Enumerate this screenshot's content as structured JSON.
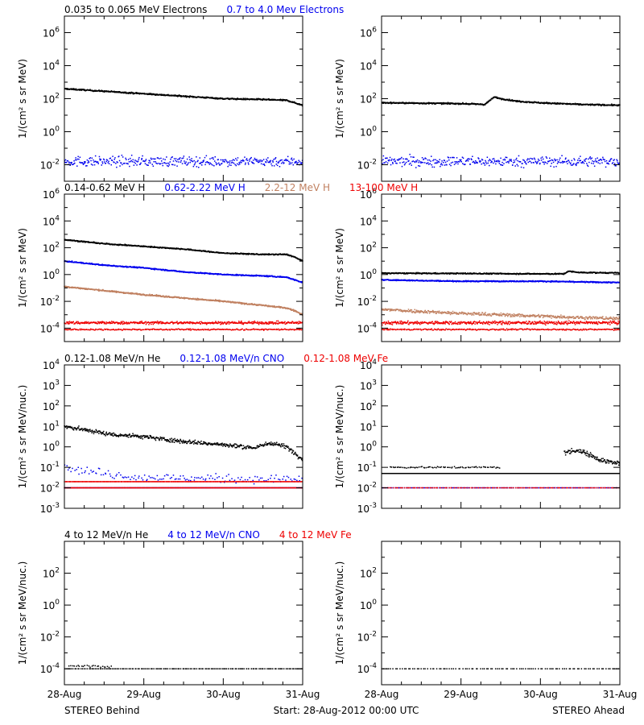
{
  "footer": {
    "left": "STEREO Behind",
    "center": "Start: 28-Aug-2012 00:00 UTC",
    "right": "STEREO Ahead"
  },
  "x_axis": {
    "unit": "days since 28-Aug-2012 00:00 UTC",
    "range": [
      0,
      3
    ],
    "ticks": [
      0,
      1,
      2,
      3
    ],
    "tick_labels": [
      "28-Aug",
      "29-Aug",
      "30-Aug",
      "31-Aug"
    ]
  },
  "colors": {
    "black": "#000000",
    "blue": "#0000ee",
    "tan": "#c08060",
    "red": "#ee0000"
  },
  "rows": [
    {
      "legend": [
        {
          "text": "0.035 to 0.065 MeV Electrons",
          "color": "#000000"
        },
        {
          "text": "0.7 to 4.0 Mev Electrons",
          "color": "#0000ee"
        }
      ]
    },
    {
      "legend": [
        {
          "text": "0.14-0.62 MeV H",
          "color": "#000000"
        },
        {
          "text": "0.62-2.22 MeV H",
          "color": "#0000ee"
        },
        {
          "text": "2.2-12 MeV H",
          "color": "#c08060"
        },
        {
          "text": "13-100 MeV H",
          "color": "#ee0000"
        }
      ]
    },
    {
      "legend": [
        {
          "text": "0.12-1.08 MeV/n He",
          "color": "#000000"
        },
        {
          "text": "0.12-1.08 MeV/n CNO",
          "color": "#0000ee"
        },
        {
          "text": "0.12-1.08 MeV Fe",
          "color": "#ee0000"
        }
      ]
    },
    {
      "legend": [
        {
          "text": "4 to 12 MeV/n He",
          "color": "#000000"
        },
        {
          "text": "4 to 12 MeV/n CNO",
          "color": "#0000ee"
        },
        {
          "text": "4 to 12 MeV Fe",
          "color": "#ee0000"
        }
      ]
    }
  ],
  "chart_data": [
    {
      "type": "scatter",
      "panel": "electrons-behind",
      "ylabel": "1/(cm² s sr MeV)",
      "yscale": "log",
      "ylim_exp": [
        -3,
        7
      ],
      "yticks": [
        {
          "exp": -2,
          "label": "10",
          "sup": "-2"
        },
        {
          "exp": 0,
          "label": "10",
          "sup": "0"
        },
        {
          "exp": 2,
          "label": "10",
          "sup": "2"
        },
        {
          "exp": 4,
          "label": "10",
          "sup": "4"
        },
        {
          "exp": 6,
          "label": "10",
          "sup": "6"
        }
      ],
      "xticks_labeled": false,
      "series": [
        {
          "color": "#000000",
          "kind": "line",
          "x": [
            0,
            0.5,
            1,
            1.5,
            2,
            2.5,
            2.8,
            3
          ],
          "log10_y": [
            2.6,
            2.45,
            2.3,
            2.15,
            2.0,
            1.95,
            1.9,
            1.6
          ],
          "noise": 0.04
        },
        {
          "color": "#0000ee",
          "kind": "scatter",
          "x": [
            0,
            3
          ],
          "log10_y": [
            -1.8,
            -1.8
          ],
          "noise": 0.3,
          "n": 400
        }
      ]
    },
    {
      "type": "scatter",
      "panel": "electrons-ahead",
      "ylabel": "1/(cm² s sr MeV)",
      "yscale": "log",
      "ylim_exp": [
        -3,
        7
      ],
      "yticks": [
        {
          "exp": -2,
          "label": "10",
          "sup": "-2"
        },
        {
          "exp": 0,
          "label": "10",
          "sup": "0"
        },
        {
          "exp": 2,
          "label": "10",
          "sup": "2"
        },
        {
          "exp": 4,
          "label": "10",
          "sup": "4"
        },
        {
          "exp": 6,
          "label": "10",
          "sup": "6"
        }
      ],
      "xticks_labeled": false,
      "series": [
        {
          "color": "#000000",
          "kind": "line",
          "x": [
            0,
            1,
            1.3,
            1.42,
            1.5,
            1.7,
            2,
            2.5,
            3
          ],
          "log10_y": [
            1.75,
            1.7,
            1.65,
            2.1,
            2.0,
            1.85,
            1.75,
            1.65,
            1.6
          ],
          "noise": 0.04
        },
        {
          "color": "#0000ee",
          "kind": "scatter",
          "x": [
            0,
            3
          ],
          "log10_y": [
            -1.8,
            -1.8
          ],
          "noise": 0.3,
          "n": 400
        }
      ]
    },
    {
      "type": "scatter",
      "panel": "protons-behind",
      "ylabel": "1/(cm² s sr MeV)",
      "yscale": "log",
      "ylim_exp": [
        -5,
        6
      ],
      "yticks": [
        {
          "exp": -4,
          "label": "10",
          "sup": "-4"
        },
        {
          "exp": -2,
          "label": "10",
          "sup": "-2"
        },
        {
          "exp": 0,
          "label": "10",
          "sup": "0"
        },
        {
          "exp": 2,
          "label": "10",
          "sup": "2"
        },
        {
          "exp": 4,
          "label": "10",
          "sup": "4"
        },
        {
          "exp": 6,
          "label": "10",
          "sup": "6"
        }
      ],
      "xticks_labeled": false,
      "series": [
        {
          "color": "#000000",
          "kind": "line",
          "x": [
            0,
            0.5,
            1,
            1.5,
            2,
            2.5,
            2.8,
            2.9,
            3
          ],
          "log10_y": [
            2.6,
            2.3,
            2.1,
            1.9,
            1.6,
            1.5,
            1.5,
            1.3,
            1.0
          ],
          "noise": 0.04
        },
        {
          "color": "#0000ee",
          "kind": "line",
          "x": [
            0,
            0.5,
            1,
            1.5,
            2,
            2.5,
            2.8,
            3
          ],
          "log10_y": [
            1.0,
            0.7,
            0.5,
            0.2,
            0.0,
            -0.1,
            -0.2,
            -0.6
          ],
          "noise": 0.04
        },
        {
          "color": "#c08060",
          "kind": "line",
          "x": [
            0,
            0.5,
            1,
            1.5,
            2,
            2.5,
            2.8,
            2.9,
            3
          ],
          "log10_y": [
            -0.9,
            -1.2,
            -1.5,
            -1.75,
            -2.0,
            -2.3,
            -2.5,
            -2.7,
            -3.0
          ],
          "noise": 0.05
        },
        {
          "color": "#ee0000",
          "kind": "scatter",
          "x": [
            0,
            3
          ],
          "log10_y": [
            -3.6,
            -3.6
          ],
          "noise": 0.1,
          "n": 500
        },
        {
          "color": "#ee0000",
          "kind": "scatter",
          "x": [
            0,
            3
          ],
          "log10_y": [
            -4.1,
            -4.1
          ],
          "noise": 0.05,
          "n": 300
        }
      ]
    },
    {
      "type": "scatter",
      "panel": "protons-ahead",
      "ylabel": "1/(cm² s sr MeV)",
      "yscale": "log",
      "ylim_exp": [
        -5,
        6
      ],
      "yticks": [
        {
          "exp": -4,
          "label": "10",
          "sup": "-4"
        },
        {
          "exp": -2,
          "label": "10",
          "sup": "-2"
        },
        {
          "exp": 0,
          "label": "10",
          "sup": "0"
        },
        {
          "exp": 2,
          "label": "10",
          "sup": "2"
        },
        {
          "exp": 4,
          "label": "10",
          "sup": "4"
        },
        {
          "exp": 6,
          "label": "10",
          "sup": "6"
        }
      ],
      "xticks_labeled": false,
      "series": [
        {
          "color": "#000000",
          "kind": "line",
          "x": [
            0,
            1,
            2,
            2.3,
            2.35,
            2.5,
            3
          ],
          "log10_y": [
            0.1,
            0.08,
            0.05,
            0.05,
            0.25,
            0.15,
            0.12
          ],
          "noise": 0.04
        },
        {
          "color": "#0000ee",
          "kind": "line",
          "x": [
            0,
            1,
            2,
            3
          ],
          "log10_y": [
            -0.4,
            -0.5,
            -0.5,
            -0.6
          ],
          "noise": 0.04
        },
        {
          "color": "#c08060",
          "kind": "scatter",
          "x": [
            0,
            1,
            2,
            3
          ],
          "log10_y": [
            -2.6,
            -2.9,
            -3.1,
            -3.3
          ],
          "noise": 0.12,
          "n": 500
        },
        {
          "color": "#ee0000",
          "kind": "scatter",
          "x": [
            0,
            3
          ],
          "log10_y": [
            -3.6,
            -3.6
          ],
          "noise": 0.12,
          "n": 500
        },
        {
          "color": "#ee0000",
          "kind": "scatter",
          "x": [
            0,
            3
          ],
          "log10_y": [
            -4.1,
            -4.1
          ],
          "noise": 0.05,
          "n": 300
        }
      ]
    },
    {
      "type": "scatter",
      "panel": "ions-low-behind",
      "ylabel": "1/(cm² s sr MeV/nuc.)",
      "yscale": "log",
      "ylim_exp": [
        -3,
        4
      ],
      "yticks": [
        {
          "exp": -3,
          "label": "10",
          "sup": "-3"
        },
        {
          "exp": -2,
          "label": "10",
          "sup": "-2"
        },
        {
          "exp": -1,
          "label": "10",
          "sup": "-1"
        },
        {
          "exp": 0,
          "label": "10",
          "sup": "0"
        },
        {
          "exp": 1,
          "label": "10",
          "sup": "1"
        },
        {
          "exp": 2,
          "label": "10",
          "sup": "2"
        },
        {
          "exp": 3,
          "label": "10",
          "sup": "3"
        },
        {
          "exp": 4,
          "label": "10",
          "sup": "4"
        }
      ],
      "xticks_labeled": false,
      "series": [
        {
          "color": "#000000",
          "kind": "scatter",
          "x": [
            0,
            0.3,
            0.6,
            1.0,
            1.4,
            2.0,
            2.4,
            2.6,
            2.8,
            3.0
          ],
          "log10_y": [
            1.0,
            0.8,
            0.6,
            0.5,
            0.3,
            0.1,
            -0.05,
            0.2,
            0.0,
            -0.6
          ],
          "noise": 0.1,
          "n": 500
        },
        {
          "color": "#0000ee",
          "kind": "scatter",
          "x": [
            0,
            0.5,
            1,
            3
          ],
          "log10_y": [
            -1.0,
            -1.3,
            -1.5,
            -1.6
          ],
          "noise": 0.2,
          "n": 150
        },
        {
          "color": "#0000ee",
          "kind": "scatter",
          "x": [
            0,
            3
          ],
          "log10_y": [
            -2.0,
            -2.0
          ],
          "noise": 0.0,
          "n": 350
        },
        {
          "color": "#ee0000",
          "kind": "scatter",
          "x": [
            0,
            3
          ],
          "log10_y": [
            -1.7,
            -1.7
          ],
          "noise": 0.0,
          "n": 300
        },
        {
          "color": "#ee0000",
          "kind": "scatter",
          "x": [
            0,
            3
          ],
          "log10_y": [
            -2.0,
            -2.0
          ],
          "noise": 0.0,
          "n": 350
        }
      ]
    },
    {
      "type": "scatter",
      "panel": "ions-low-ahead",
      "ylabel": "1/(cm² s sr MeV/nuc.)",
      "yscale": "log",
      "ylim_exp": [
        -3,
        4
      ],
      "yticks": [
        {
          "exp": -3,
          "label": "10",
          "sup": "-3"
        },
        {
          "exp": -2,
          "label": "10",
          "sup": "-2"
        },
        {
          "exp": -1,
          "label": "10",
          "sup": "-1"
        },
        {
          "exp": 0,
          "label": "10",
          "sup": "0"
        },
        {
          "exp": 1,
          "label": "10",
          "sup": "1"
        },
        {
          "exp": 2,
          "label": "10",
          "sup": "2"
        },
        {
          "exp": 3,
          "label": "10",
          "sup": "3"
        },
        {
          "exp": 4,
          "label": "10",
          "sup": "4"
        }
      ],
      "xticks_labeled": false,
      "series": [
        {
          "color": "#000000",
          "kind": "scatter",
          "x": [
            0,
            3
          ],
          "log10_y": [
            -1.3,
            -1.3
          ],
          "noise": 0.0,
          "n": 450
        },
        {
          "color": "#000000",
          "kind": "scatter",
          "x": [
            0.1,
            1.5
          ],
          "log10_y": [
            -1.0,
            -1.0
          ],
          "noise": 0.04,
          "n": 80
        },
        {
          "color": "#000000",
          "kind": "scatter",
          "x": [
            2.3,
            2.45,
            2.6,
            2.8,
            3.0
          ],
          "log10_y": [
            -0.3,
            -0.15,
            -0.35,
            -0.7,
            -0.8
          ],
          "noise": 0.12,
          "n": 120
        },
        {
          "color": "#0000ee",
          "kind": "scatter",
          "x": [
            0,
            3
          ],
          "log10_y": [
            -2.0,
            -2.0
          ],
          "noise": 0.0,
          "n": 150
        },
        {
          "color": "#ee0000",
          "kind": "scatter",
          "x": [
            0,
            3
          ],
          "log10_y": [
            -2.0,
            -2.0
          ],
          "noise": 0.0,
          "n": 150
        }
      ]
    },
    {
      "type": "scatter",
      "panel": "ions-high-behind",
      "ylabel": "1/(cm² s sr MeV/nuc.)",
      "yscale": "log",
      "ylim_exp": [
        -5,
        4
      ],
      "yticks": [
        {
          "exp": -4,
          "label": "10",
          "sup": "-4"
        },
        {
          "exp": -2,
          "label": "10",
          "sup": "-2"
        },
        {
          "exp": 0,
          "label": "10",
          "sup": "0"
        },
        {
          "exp": 2,
          "label": "10",
          "sup": "2"
        }
      ],
      "xticks_labeled": true,
      "series": [
        {
          "color": "#000000",
          "kind": "scatter",
          "x": [
            0,
            3
          ],
          "log10_y": [
            -4.0,
            -4.0
          ],
          "noise": 0.0,
          "n": 150
        },
        {
          "color": "#000000",
          "kind": "scatter",
          "x": [
            0.05,
            0.6
          ],
          "log10_y": [
            -3.8,
            -3.9
          ],
          "noise": 0.08,
          "n": 25
        }
      ]
    },
    {
      "type": "scatter",
      "panel": "ions-high-ahead",
      "ylabel": "1/(cm² s sr MeV/nuc.)",
      "yscale": "log",
      "ylim_exp": [
        -5,
        4
      ],
      "yticks": [
        {
          "exp": -4,
          "label": "10",
          "sup": "-4"
        },
        {
          "exp": -2,
          "label": "10",
          "sup": "-2"
        },
        {
          "exp": 0,
          "label": "10",
          "sup": "0"
        },
        {
          "exp": 2,
          "label": "10",
          "sup": "2"
        }
      ],
      "xticks_labeled": true,
      "series": [
        {
          "color": "#000000",
          "kind": "scatter",
          "x": [
            0,
            3
          ],
          "log10_y": [
            -4.0,
            -4.0
          ],
          "noise": 0.0,
          "n": 110
        }
      ]
    }
  ]
}
